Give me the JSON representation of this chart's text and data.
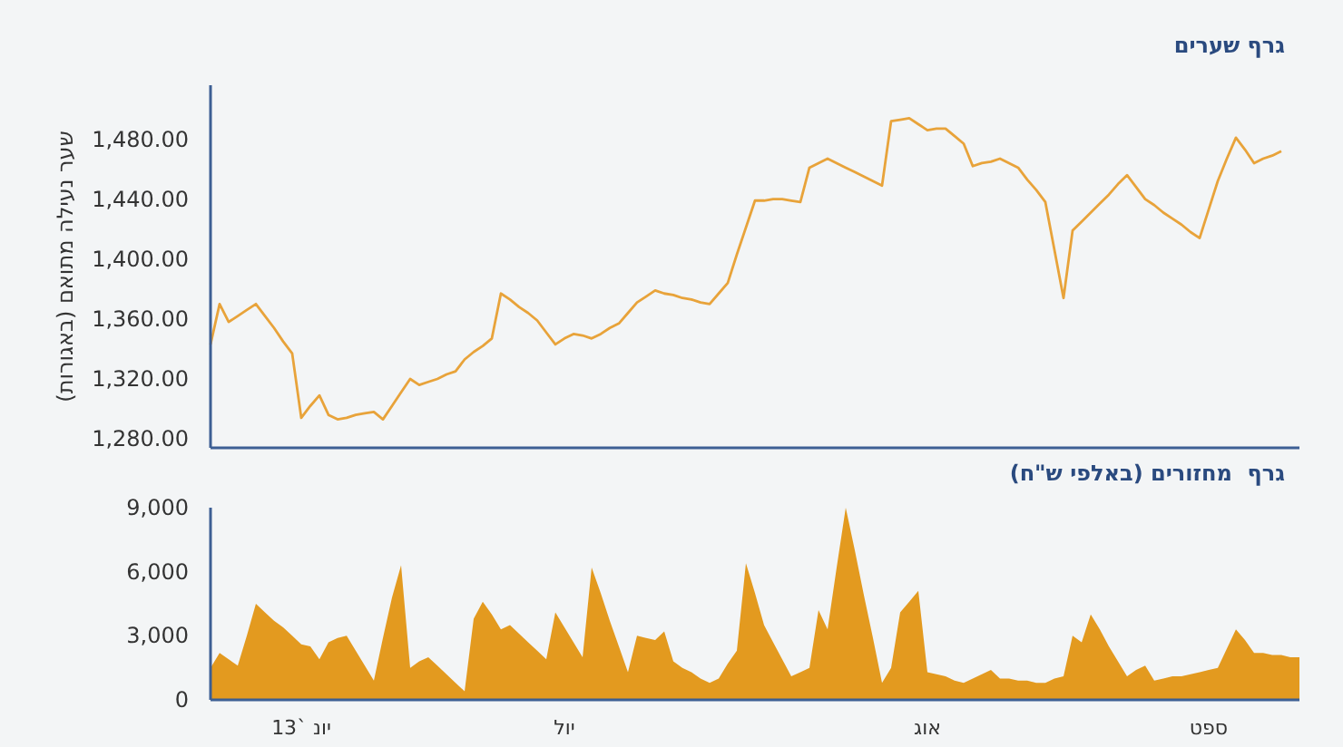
{
  "chart_data": [
    {
      "type": "line",
      "title": "גרף שערים",
      "ylabel": "שער נעילה מתואם (באגורות)",
      "categories": [
        null,
        null,
        null,
        null,
        null,
        null,
        null,
        null,
        null,
        null,
        null,
        null,
        null,
        null,
        null,
        null,
        null,
        null,
        null,
        null,
        null,
        null,
        null,
        null,
        null,
        null,
        null,
        null,
        null,
        null,
        null,
        null,
        null,
        null,
        null,
        null,
        null,
        null,
        null,
        null,
        null,
        null,
        null,
        null,
        null,
        null,
        null,
        null,
        null,
        null,
        null,
        null,
        null,
        null,
        null,
        null,
        null,
        null,
        null,
        null,
        null,
        null,
        null,
        null,
        null,
        null,
        null,
        null,
        null,
        null,
        null,
        null,
        null,
        null,
        null,
        null,
        null,
        null,
        null,
        null,
        null,
        null,
        null,
        null,
        null,
        null,
        null,
        null,
        null,
        null,
        null,
        null,
        null,
        null,
        null,
        null,
        null,
        null,
        null,
        null,
        null,
        null,
        null,
        null,
        null,
        null,
        null,
        null,
        null,
        null,
        null,
        null,
        null,
        null,
        null,
        null,
        null,
        null,
        null,
        null,
        null
      ],
      "series": [
        {
          "color": "#e8a33a",
          "values": [
            1343,
            1370,
            1358,
            1362,
            1366,
            1370,
            1362,
            1354,
            1345,
            1337,
            1294,
            1302,
            1309,
            1296,
            1293,
            1294,
            1296,
            1297,
            1298,
            1293,
            1302,
            1311,
            1320,
            1316,
            1318,
            1320,
            1323,
            1325,
            1333,
            1338,
            1342,
            1347,
            1377,
            1373,
            1368,
            1364,
            1359,
            1351,
            1343,
            1347,
            1350,
            1349,
            1347,
            1350,
            1354,
            1357,
            1364,
            1371,
            1375,
            1379,
            1377,
            1376,
            1374,
            1373,
            1371,
            1370,
            1377,
            1384,
            1403,
            1421,
            1439,
            1439,
            1440,
            1440,
            1439,
            1438,
            1461,
            1464,
            1467,
            1464,
            1461,
            1458,
            1455,
            1452,
            1449,
            1492,
            1493,
            1494,
            1490,
            1486,
            1487,
            1487,
            1482,
            1477,
            1462,
            1464,
            1465,
            1467,
            1464,
            1461,
            1453,
            1446,
            1438,
            1406,
            1374,
            1419,
            1425,
            1431,
            1437,
            1443,
            1450,
            1456,
            1448,
            1440,
            1436,
            1431,
            1427,
            1423,
            1418,
            1414,
            1433,
            1452,
            1467,
            1481,
            1473,
            1464,
            1467,
            1469,
            1472,
            null,
            null
          ]
        }
      ],
      "ylim": [
        1274,
        1516
      ],
      "yticks": [
        {
          "value": 1280,
          "label": "1,280.00"
        },
        {
          "value": 1320,
          "label": "1,320.00"
        },
        {
          "value": 1360,
          "label": "1,360.00"
        },
        {
          "value": 1400,
          "label": "1,400.00"
        },
        {
          "value": 1440,
          "label": "1,440.00"
        },
        {
          "value": 1480,
          "label": "1,480.00"
        }
      ],
      "tick_labels": "y"
    },
    {
      "type": "area",
      "title": "גרף  מחזורים (באלפי ש\"ח)",
      "categories": [
        null,
        null,
        null,
        null,
        null,
        null,
        null,
        null,
        null,
        null,
        "יונ `13",
        null,
        null,
        null,
        null,
        null,
        null,
        null,
        null,
        null,
        null,
        null,
        null,
        null,
        null,
        null,
        null,
        null,
        null,
        null,
        null,
        null,
        null,
        null,
        null,
        null,
        null,
        null,
        null,
        "יול",
        null,
        null,
        null,
        null,
        null,
        null,
        null,
        null,
        null,
        null,
        null,
        null,
        null,
        null,
        null,
        null,
        null,
        null,
        null,
        null,
        null,
        null,
        null,
        null,
        null,
        null,
        null,
        null,
        null,
        null,
        null,
        null,
        null,
        null,
        null,
        null,
        null,
        null,
        null,
        "אוג",
        null,
        null,
        null,
        null,
        null,
        null,
        null,
        null,
        null,
        null,
        null,
        null,
        null,
        null,
        null,
        null,
        null,
        null,
        null,
        null,
        null,
        null,
        null,
        null,
        null,
        null,
        null,
        null,
        null,
        null,
        "ספט",
        null,
        null,
        null,
        null,
        null,
        null,
        null,
        null,
        null,
        null
      ],
      "series": [
        {
          "color": "#e39a1f",
          "values": [
            1500,
            2200,
            1900,
            1600,
            3000,
            4500,
            4100,
            3700,
            3400,
            3000,
            2600,
            2500,
            1900,
            2700,
            2900,
            3000,
            2300,
            1600,
            900,
            2900,
            4800,
            6300,
            1500,
            1800,
            2000,
            1600,
            1200,
            800,
            400,
            3800,
            4600,
            4000,
            3300,
            3500,
            3100,
            2700,
            2300,
            1900,
            4100,
            3400,
            2700,
            2000,
            6200,
            5000,
            3700,
            2500,
            1300,
            3000,
            2900,
            2800,
            3200,
            1800,
            1500,
            1300,
            1000,
            800,
            1000,
            1700,
            2300,
            6400,
            5000,
            3500,
            2700,
            1900,
            1100,
            1300,
            1500,
            4200,
            3300,
            6200,
            9000,
            7000,
            4900,
            2900,
            800,
            1500,
            4100,
            4600,
            5100,
            1300,
            1200,
            1100,
            900,
            800,
            1000,
            1200,
            1400,
            1000,
            1000,
            900,
            900,
            800,
            800,
            1000,
            1100,
            3000,
            2700,
            4000,
            3300,
            2500,
            1800,
            1100,
            1400,
            1600,
            900,
            1000,
            1100,
            1100,
            1200,
            1300,
            1400,
            1500,
            2400,
            3300,
            2800,
            2200,
            2200,
            2100,
            2100,
            2000,
            2000
          ]
        }
      ],
      "ylim": [
        0,
        9000
      ],
      "yticks": [
        {
          "value": 0,
          "label": "0"
        },
        {
          "value": 3000,
          "label": "3,000"
        },
        {
          "value": 6000,
          "label": "6,000"
        },
        {
          "value": 9000,
          "label": "9,000"
        }
      ]
    }
  ]
}
